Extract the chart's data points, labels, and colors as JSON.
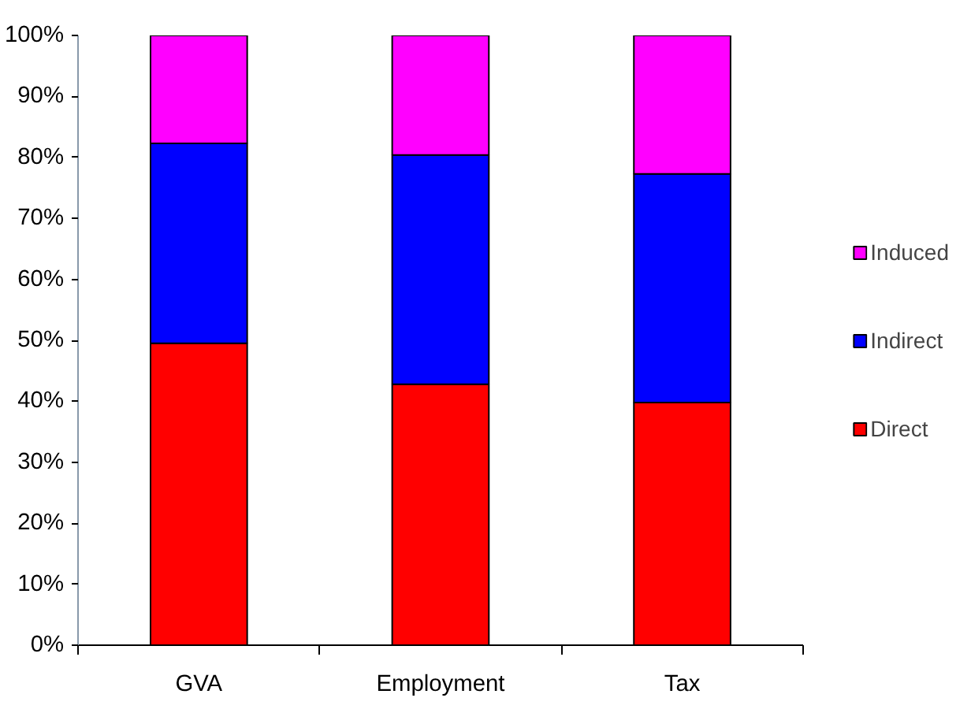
{
  "chart_data": {
    "type": "bar",
    "stacked": true,
    "categories": [
      "GVA",
      "Employment",
      "Tax"
    ],
    "series": [
      {
        "name": "Direct",
        "color": "#ff0000",
        "values": [
          49.5,
          42.8,
          39.8
        ]
      },
      {
        "name": "Indirect",
        "color": "#0000ff",
        "values": [
          32.8,
          37.6,
          37.5
        ]
      },
      {
        "name": "Induced",
        "color": "#ff00ff",
        "values": [
          17.7,
          19.6,
          22.7
        ]
      }
    ],
    "ylim": [
      0,
      100
    ],
    "yticks": [
      {
        "value": 0,
        "label": "0%"
      },
      {
        "value": 10,
        "label": "10%"
      },
      {
        "value": 20,
        "label": "20%"
      },
      {
        "value": 30,
        "label": "30%"
      },
      {
        "value": 40,
        "label": "40%"
      },
      {
        "value": 50,
        "label": "50%"
      },
      {
        "value": 60,
        "label": "60%"
      },
      {
        "value": 70,
        "label": "70%"
      },
      {
        "value": 80,
        "label": "80%"
      },
      {
        "value": 90,
        "label": "90%"
      },
      {
        "value": 100,
        "label": "100%"
      }
    ],
    "grid": false,
    "legend": "right"
  }
}
